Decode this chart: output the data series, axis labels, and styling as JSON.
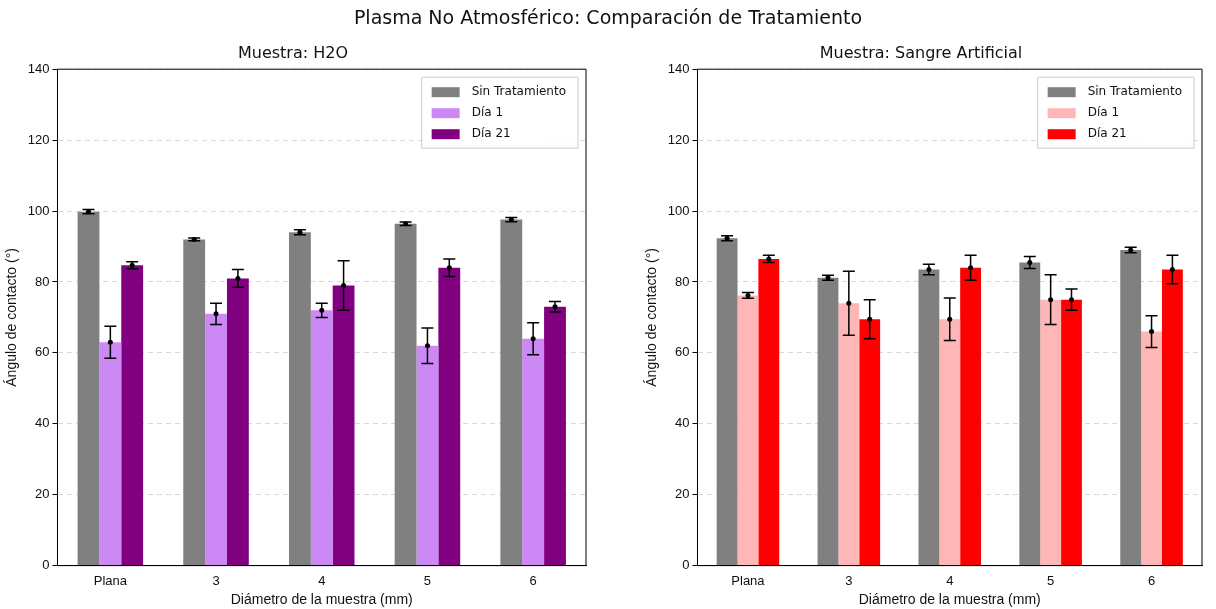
{
  "chart_data": [
    {
      "type": "bar",
      "title": "Muestra: H2O",
      "xlabel": "Diámetro de la muestra (mm)",
      "ylabel": "Ángulo de contacto (°)",
      "categories": [
        "Plana",
        "3",
        "4",
        "5",
        "6"
      ],
      "ylim": [
        0,
        140
      ],
      "yticks": [
        0,
        20,
        40,
        60,
        80,
        100,
        120,
        140
      ],
      "grid": "y",
      "legend": "top right",
      "annotations": [
        "Plasma No Atmosférico: Comparación de Tratamiento"
      ],
      "series": [
        {
          "name": "Sin Tratamiento",
          "color": "#808080",
          "values": [
            99.8,
            92,
            94,
            96.4,
            97.6
          ],
          "errors": [
            0.6,
            0.4,
            0.7,
            0.5,
            0.6
          ]
        },
        {
          "name": "Día 1",
          "color": "#cc88f5",
          "values": [
            63,
            71,
            72,
            62,
            64
          ],
          "errors": [
            4.5,
            3,
            2,
            5,
            4.5
          ]
        },
        {
          "name": "Día 21",
          "color": "#800080",
          "values": [
            84.7,
            81,
            79,
            84,
            73
          ],
          "errors": [
            1,
            2.5,
            7,
            2.5,
            1.5
          ]
        }
      ]
    },
    {
      "type": "bar",
      "title": "Muestra: Sangre Artificial",
      "xlabel": "Diámetro de la muestra (mm)",
      "ylabel": "Ángulo de contacto (°)",
      "categories": [
        "Plana",
        "3",
        "4",
        "5",
        "6"
      ],
      "ylim": [
        0,
        140
      ],
      "yticks": [
        0,
        20,
        40,
        60,
        80,
        100,
        120,
        140
      ],
      "grid": "y",
      "legend": "top right",
      "series": [
        {
          "name": "Sin Tratamiento",
          "color": "#808080",
          "values": [
            92.3,
            81.2,
            83.5,
            85.5,
            89
          ],
          "errors": [
            0.7,
            0.7,
            1.5,
            1.7,
            0.8
          ]
        },
        {
          "name": "Día 1",
          "color": "#ffb6b6",
          "values": [
            76.2,
            74,
            69.5,
            75,
            66
          ],
          "errors": [
            0.8,
            9,
            6,
            7,
            4.5
          ]
        },
        {
          "name": "Día 21",
          "color": "#ff0000",
          "values": [
            86.5,
            69.5,
            84,
            75,
            83.5
          ],
          "errors": [
            1,
            5.5,
            3.5,
            3,
            4
          ]
        }
      ]
    }
  ]
}
